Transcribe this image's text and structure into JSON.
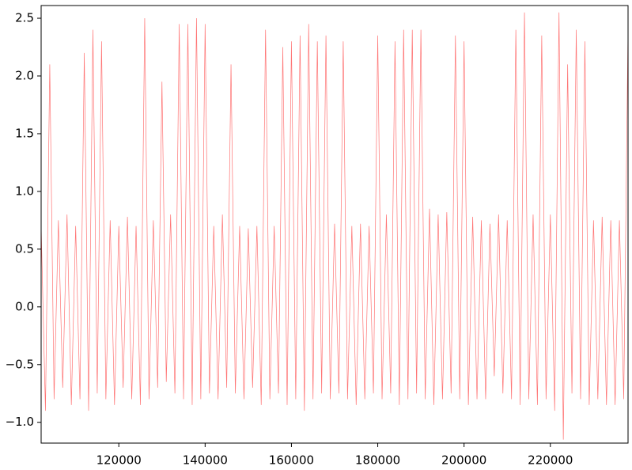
{
  "chart_data": {
    "type": "line",
    "x": [
      102000,
      103000,
      104000,
      105000,
      106000,
      107000,
      108000,
      109000,
      110000,
      111000,
      112000,
      113000,
      114000,
      115000,
      116000,
      117000,
      118000,
      119000,
      120000,
      121000,
      122000,
      123000,
      124000,
      125000,
      126000,
      127000,
      128000,
      129000,
      130000,
      131000,
      132000,
      133000,
      134000,
      135000,
      136000,
      137000,
      138000,
      139000,
      140000,
      141000,
      142000,
      143000,
      144000,
      145000,
      146000,
      147000,
      148000,
      149000,
      150000,
      151000,
      152000,
      153000,
      154000,
      155000,
      156000,
      157000,
      158000,
      159000,
      160000,
      161000,
      162000,
      163000,
      164000,
      165000,
      166000,
      167000,
      168000,
      169000,
      170000,
      171000,
      172000,
      173000,
      174000,
      175000,
      176000,
      177000,
      178000,
      179000,
      180000,
      181000,
      182000,
      183000,
      184000,
      185000,
      186000,
      187000,
      188000,
      189000,
      190000,
      191000,
      192000,
      193000,
      194000,
      195000,
      196000,
      197000,
      198000,
      199000,
      200000,
      201000,
      202000,
      203000,
      204000,
      205000,
      206000,
      207000,
      208000,
      209000,
      210000,
      211000,
      212000,
      213000,
      214000,
      215000,
      216000,
      217000,
      218000,
      219000,
      220000,
      221000,
      222000,
      223000,
      224000,
      225000,
      226000,
      227000,
      228000,
      229000,
      230000,
      231000,
      232000,
      233000,
      234000,
      235000,
      236000,
      237000,
      238000
    ],
    "values": [
      0.7,
      -0.9,
      2.1,
      -0.8,
      0.75,
      -0.7,
      0.8,
      -0.85,
      0.7,
      -0.8,
      2.2,
      -0.9,
      2.4,
      -0.75,
      2.3,
      -0.8,
      0.75,
      -0.85,
      0.7,
      -0.7,
      0.78,
      -0.8,
      0.7,
      -0.85,
      2.5,
      -0.8,
      0.75,
      -0.7,
      1.95,
      -0.65,
      0.8,
      -0.75,
      2.45,
      -0.8,
      2.45,
      -0.85,
      2.5,
      -0.8,
      2.45,
      -0.75,
      0.7,
      -0.8,
      0.8,
      -0.7,
      2.1,
      -0.75,
      0.7,
      -0.8,
      0.68,
      -0.7,
      0.7,
      -0.85,
      2.4,
      -0.8,
      0.7,
      -0.75,
      2.25,
      -0.85,
      2.3,
      -0.8,
      2.35,
      -0.9,
      2.45,
      -0.8,
      2.3,
      -0.75,
      2.35,
      -0.8,
      0.72,
      -0.75,
      2.3,
      -0.8,
      0.7,
      -0.85,
      0.72,
      -0.8,
      0.7,
      -0.75,
      2.35,
      -0.8,
      0.8,
      -0.75,
      2.3,
      -0.85,
      2.4,
      -0.8,
      2.4,
      -0.75,
      2.4,
      -0.8,
      0.85,
      -0.85,
      0.8,
      -0.8,
      0.82,
      -0.75,
      2.35,
      -0.8,
      2.3,
      -0.85,
      0.78,
      -0.8,
      0.75,
      -0.8,
      0.72,
      -0.6,
      0.8,
      -0.75,
      0.75,
      -0.8,
      2.4,
      -0.85,
      2.55,
      -0.8,
      0.8,
      -0.85,
      2.35,
      -0.8,
      0.8,
      -0.9,
      2.55,
      -1.15,
      2.1,
      -0.75,
      2.4,
      -0.8,
      2.3,
      -0.85,
      0.75,
      -0.8,
      0.78,
      -0.85,
      0.75,
      -0.85,
      0.75,
      -0.8,
      2.4
    ],
    "color": "#ff0000",
    "xlim": [
      102000,
      238000
    ],
    "ylim": [
      -1.18,
      2.61
    ],
    "xticks": [
      120000,
      140000,
      160000,
      180000,
      200000,
      220000
    ],
    "yticks": [
      {
        "value": -1,
        "label": "−1.0"
      },
      {
        "value": -0.5,
        "label": "−0.5"
      },
      {
        "value": 0,
        "label": "0.0"
      },
      0.5,
      {
        "value": 1,
        "label": "1.0"
      },
      1.5,
      {
        "value": 2,
        "label": "2.0"
      },
      2.5
    ]
  }
}
